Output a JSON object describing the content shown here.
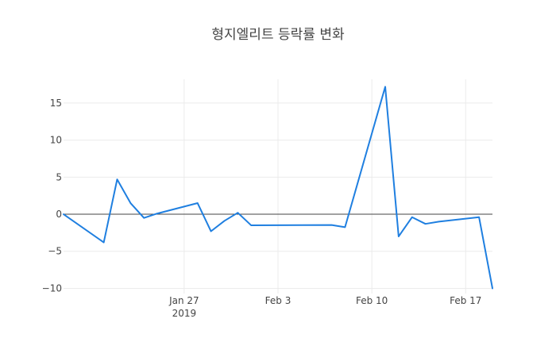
{
  "chart_data": {
    "type": "line",
    "title": "형지엘리트 등락률 변화",
    "xlabel": "",
    "ylabel": "",
    "x_type": "date",
    "xlim": [
      "2019-01-18",
      "2019-02-19"
    ],
    "ylim": [
      -10.7,
      18.2
    ],
    "x_ticks": [
      {
        "value": "2019-01-27",
        "label": "Jan 27",
        "sublabel": "2019"
      },
      {
        "value": "2019-02-03",
        "label": "Feb 3",
        "sublabel": ""
      },
      {
        "value": "2019-02-10",
        "label": "Feb 10",
        "sublabel": ""
      },
      {
        "value": "2019-02-17",
        "label": "Feb 17",
        "sublabel": ""
      }
    ],
    "y_ticks": [
      -10,
      -5,
      0,
      5,
      10,
      15
    ],
    "y_tick_labels": [
      "−10",
      "−5",
      "0",
      "5",
      "10",
      "15"
    ],
    "grid": true,
    "zero_line": true,
    "colors": {
      "line": "#1f7fe0",
      "grid": "#ebebeb",
      "zero_line": "#444444"
    },
    "series": [
      {
        "name": "",
        "x": [
          "2019-01-18",
          "2019-01-21",
          "2019-01-22",
          "2019-01-23",
          "2019-01-24",
          "2019-01-25",
          "2019-01-28",
          "2019-01-29",
          "2019-01-30",
          "2019-01-31",
          "2019-02-01",
          "2019-02-07",
          "2019-02-08",
          "2019-02-11",
          "2019-02-12",
          "2019-02-13",
          "2019-02-14",
          "2019-02-15",
          "2019-02-18",
          "2019-02-19"
        ],
        "values": [
          0,
          -3.8,
          4.7,
          1.5,
          -0.5,
          0.1,
          1.5,
          -2.3,
          -0.9,
          0.2,
          -1.5,
          -1.45,
          -1.75,
          17.2,
          -3.0,
          -0.4,
          -1.3,
          -1.0,
          -0.4,
          -10.0
        ]
      }
    ]
  }
}
